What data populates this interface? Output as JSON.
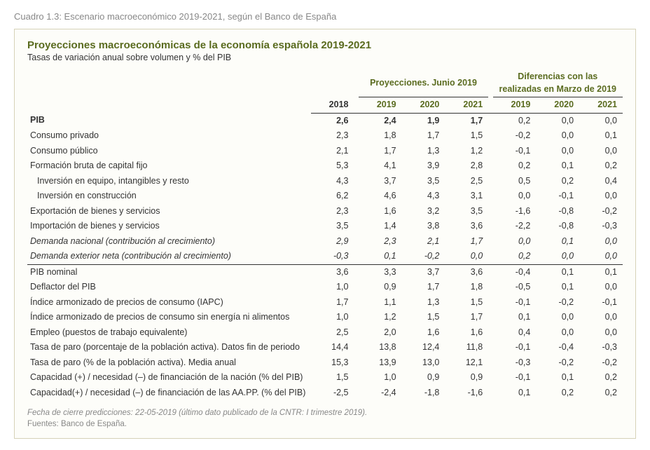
{
  "caption": "Cuadro 1.3:  Escenario macroeconómico 2019-2021, según el Banco de España",
  "title": "Proyecciones macroeconómicas de la economía española 2019-2021",
  "subtitle": "Tasas de variación anual sobre volumen y % del PIB",
  "header": {
    "base_year": "2018",
    "group_proj": "Proyecciones. Junio 2019",
    "group_diff": "Diferencias con las realizadas en Marzo de 2019",
    "years_proj": [
      "2019",
      "2020",
      "2021"
    ],
    "years_diff": [
      "2019",
      "2020",
      "2021"
    ]
  },
  "rows": [
    {
      "label": "PIB",
      "bold": true,
      "v": [
        "2,6",
        "2,4",
        "1,9",
        "1,7",
        "0,2",
        "0,0",
        "0,0"
      ]
    },
    {
      "label": "Consumo privado",
      "v": [
        "2,3",
        "1,8",
        "1,7",
        "1,5",
        "-0,2",
        "0,0",
        "0,1"
      ]
    },
    {
      "label": "Consumo público",
      "v": [
        "2,1",
        "1,7",
        "1,3",
        "1,2",
        "-0,1",
        "0,0",
        "0,0"
      ]
    },
    {
      "label": "Formación bruta de capital fijo",
      "v": [
        "5,3",
        "4,1",
        "3,9",
        "2,8",
        "0,2",
        "0,1",
        "0,2"
      ]
    },
    {
      "label": "Inversión en equipo, intangibles y resto",
      "indent": 1,
      "v": [
        "4,3",
        "3,7",
        "3,5",
        "2,5",
        "0,5",
        "0,2",
        "0,4"
      ]
    },
    {
      "label": "Inversión en construcción",
      "indent": 1,
      "v": [
        "6,2",
        "4,6",
        "4,3",
        "3,1",
        "0,0",
        "-0,1",
        "0,0"
      ]
    },
    {
      "label": "Exportación de bienes y servicios",
      "v": [
        "2,3",
        "1,6",
        "3,2",
        "3,5",
        "-1,6",
        "-0,8",
        "-0,2"
      ]
    },
    {
      "label": "Importación de bienes y servicios",
      "v": [
        "3,5",
        "1,4",
        "3,8",
        "3,6",
        "-2,2",
        "-0,8",
        "-0,3"
      ]
    },
    {
      "label": "Demanda nacional (contribución al crecimiento)",
      "italic": true,
      "v": [
        "2,9",
        "2,3",
        "2,1",
        "1,7",
        "0,0",
        "0,1",
        "0,0"
      ]
    },
    {
      "label": "Demanda exterior neta (contribución al crecimiento)",
      "italic": true,
      "sepAfter": true,
      "v": [
        "-0,3",
        "0,1",
        "-0,2",
        "0,0",
        "0,2",
        "0,0",
        "0,0"
      ]
    },
    {
      "label": "PIB nominal",
      "v": [
        "3,6",
        "3,3",
        "3,7",
        "3,6",
        "-0,4",
        "0,1",
        "0,1"
      ]
    },
    {
      "label": "Deflactor del PIB",
      "v": [
        "1,0",
        "0,9",
        "1,7",
        "1,8",
        "-0,5",
        "0,1",
        "0,0"
      ]
    },
    {
      "label": "Índice armonizado de precios de consumo (IAPC)",
      "v": [
        "1,7",
        "1,1",
        "1,3",
        "1,5",
        "-0,1",
        "-0,2",
        "-0,1"
      ]
    },
    {
      "label": "Índice armonizado de precios de consumo sin energía ni alimentos",
      "v": [
        "1,0",
        "1,2",
        "1,5",
        "1,7",
        "0,1",
        "0,0",
        "0,0"
      ]
    },
    {
      "label": "Empleo (puestos de trabajo equivalente)",
      "v": [
        "2,5",
        "2,0",
        "1,6",
        "1,6",
        "0,4",
        "0,0",
        "0,0"
      ]
    },
    {
      "label": "Tasa de paro (porcentaje de la población activa). Datos fin de periodo",
      "v": [
        "14,4",
        "13,8",
        "12,4",
        "11,8",
        "-0,1",
        "-0,4",
        "-0,3"
      ]
    },
    {
      "label": "Tasa de paro (% de la población activa). Media anual",
      "v": [
        "15,3",
        "13,9",
        "13,0",
        "12,1",
        "-0,3",
        "-0,2",
        "-0,2"
      ]
    },
    {
      "label": "Capacidad (+) / necesidad (–) de financiación de la nación (% del PIB)",
      "v": [
        "1,5",
        "1,0",
        "0,9",
        "0,9",
        "-0,1",
        "0,1",
        "0,2"
      ]
    },
    {
      "label": "Capacidad(+) / necesidad (–) de financiación de las AA.PP. (% del PIB)",
      "v": [
        "-2,5",
        "-2,4",
        "-1,8",
        "-1,6",
        "0,1",
        "0,2",
        "0,2"
      ]
    }
  ],
  "footnote_line1": "Fecha de cierre predicciones: 22-05-2019 (último dato publicado de la CNTR: I trimestre 2019).",
  "footnote_line2": "Fuentes: Banco de España."
}
